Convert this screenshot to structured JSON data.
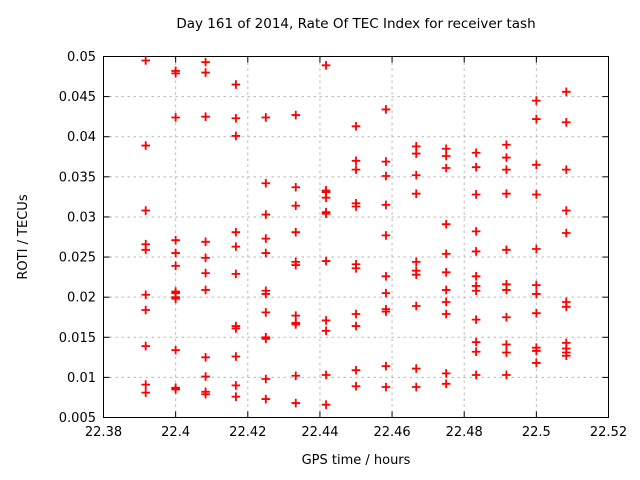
{
  "chart_data": {
    "type": "scatter",
    "title": "Day 161 of 2014, Rate Of TEC Index for receiver tash",
    "xlabel": "GPS time / hours",
    "ylabel": "ROTI / TECUs",
    "xlim": [
      22.38,
      22.52
    ],
    "ylim": [
      0.005,
      0.05
    ],
    "grid": true,
    "legend": "none",
    "marker": "plus",
    "marker_color": "#ff0000",
    "xticks": [
      {
        "value": 22.38,
        "label": "22.38"
      },
      {
        "value": 22.4,
        "label": "22.4"
      },
      {
        "value": 22.42,
        "label": "22.42"
      },
      {
        "value": 22.44,
        "label": "22.44"
      },
      {
        "value": 22.46,
        "label": "22.46"
      },
      {
        "value": 22.48,
        "label": "22.48"
      },
      {
        "value": 22.5,
        "label": "22.5"
      },
      {
        "value": 22.52,
        "label": "22.52"
      }
    ],
    "yticks": [
      {
        "value": 0.005,
        "label": "0.005"
      },
      {
        "value": 0.01,
        "label": "0.01"
      },
      {
        "value": 0.015,
        "label": "0.015"
      },
      {
        "value": 0.02,
        "label": "0.02"
      },
      {
        "value": 0.025,
        "label": "0.025"
      },
      {
        "value": 0.03,
        "label": "0.03"
      },
      {
        "value": 0.035,
        "label": "0.035"
      },
      {
        "value": 0.04,
        "label": "0.04"
      },
      {
        "value": 0.045,
        "label": "0.045"
      },
      {
        "value": 0.05,
        "label": "0.05"
      }
    ],
    "columns": [
      {
        "t": 22.3917,
        "roti": [
          0.0495,
          0.0389,
          0.0308,
          0.0266,
          0.0259,
          0.0203,
          0.0184,
          0.0139,
          0.0091,
          0.0081
        ]
      },
      {
        "t": 22.4,
        "roti": [
          0.0482,
          0.0479,
          0.0424,
          0.0271,
          0.0255,
          0.0239,
          0.0207,
          0.0205,
          0.02,
          0.0198,
          0.0134,
          0.0087,
          0.0085
        ]
      },
      {
        "t": 22.4083,
        "roti": [
          0.0493,
          0.048,
          0.0425,
          0.0269,
          0.0249,
          0.023,
          0.0209,
          0.0125,
          0.0101,
          0.0082,
          0.0079
        ]
      },
      {
        "t": 22.4167,
        "roti": [
          0.0465,
          0.0423,
          0.0401,
          0.0281,
          0.0263,
          0.0229,
          0.0164,
          0.0161,
          0.0126,
          0.009,
          0.0076
        ]
      },
      {
        "t": 22.425,
        "roti": [
          0.0424,
          0.0342,
          0.0303,
          0.0273,
          0.0255,
          0.0208,
          0.0204,
          0.0181,
          0.015,
          0.0148,
          0.0098,
          0.0073
        ]
      },
      {
        "t": 22.4333,
        "roti": [
          0.0427,
          0.0337,
          0.0314,
          0.0281,
          0.0244,
          0.024,
          0.0177,
          0.0168,
          0.0166,
          0.0102,
          0.0068
        ]
      },
      {
        "t": 22.4417,
        "roti": [
          0.0489,
          0.0333,
          0.0331,
          0.0324,
          0.0306,
          0.0304,
          0.0245,
          0.0171,
          0.0158,
          0.0103,
          0.0066
        ]
      },
      {
        "t": 22.45,
        "roti": [
          0.0413,
          0.037,
          0.0359,
          0.0317,
          0.0313,
          0.0241,
          0.0236,
          0.0179,
          0.0164,
          0.0109,
          0.0089
        ]
      },
      {
        "t": 22.4583,
        "roti": [
          0.0434,
          0.0369,
          0.0351,
          0.0315,
          0.0277,
          0.0226,
          0.0205,
          0.0185,
          0.0182,
          0.0114,
          0.0088
        ]
      },
      {
        "t": 22.4667,
        "roti": [
          0.0388,
          0.0379,
          0.0352,
          0.0329,
          0.0244,
          0.0233,
          0.0228,
          0.0189,
          0.0111,
          0.0088
        ]
      },
      {
        "t": 22.475,
        "roti": [
          0.0385,
          0.0376,
          0.0361,
          0.0291,
          0.0254,
          0.0231,
          0.0209,
          0.0194,
          0.0179,
          0.0105,
          0.0092
        ]
      },
      {
        "t": 22.4833,
        "roti": [
          0.038,
          0.0362,
          0.0328,
          0.0282,
          0.0257,
          0.0226,
          0.0214,
          0.0208,
          0.0172,
          0.0144,
          0.0132,
          0.0103
        ]
      },
      {
        "t": 22.4917,
        "roti": [
          0.039,
          0.0374,
          0.0359,
          0.0329,
          0.0259,
          0.0216,
          0.0209,
          0.0175,
          0.0141,
          0.0131,
          0.0103
        ]
      },
      {
        "t": 22.5,
        "roti": [
          0.0445,
          0.0422,
          0.0365,
          0.0328,
          0.026,
          0.0215,
          0.0204,
          0.018,
          0.0137,
          0.0133,
          0.0118
        ]
      },
      {
        "t": 22.5083,
        "roti": [
          0.0456,
          0.0418,
          0.0359,
          0.0308,
          0.028,
          0.0194,
          0.0188,
          0.0143,
          0.0136,
          0.0131,
          0.0127
        ]
      }
    ]
  }
}
